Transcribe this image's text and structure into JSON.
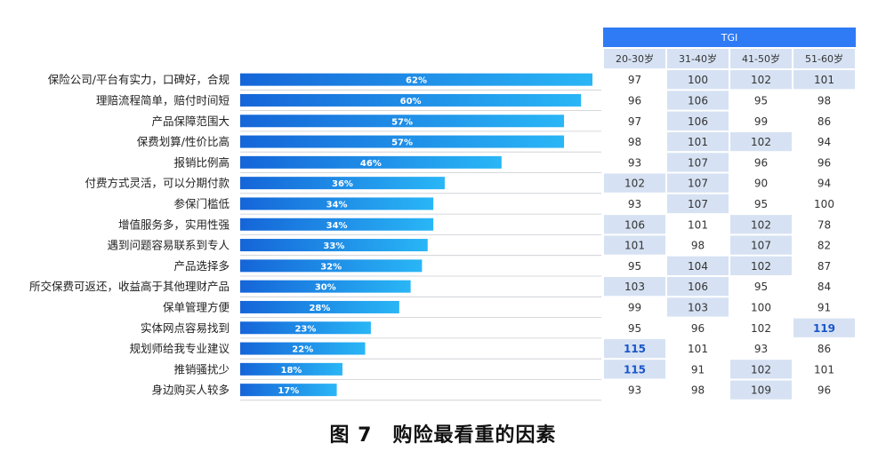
{
  "chart_data": {
    "type": "bar",
    "orientation": "horizontal",
    "categories": [
      "保险公司/平台有实力，口碑好，合规",
      "理赔流程简单，赔付时间短",
      "产品保障范围大",
      "保费划算/性价比高",
      "报销比例高",
      "付费方式灵活，可以分期付款",
      "参保门槛低",
      "增值服务多，实用性强",
      "遇到问题容易联系到专人",
      "产品选择多",
      "所交保费可返还，收益高于其他理财产品",
      "保单管理方便",
      "实体网点容易找到",
      "规划师给我专业建议",
      "推销骚扰少",
      "身边购买人较多"
    ],
    "values": [
      62,
      60,
      57,
      57,
      46,
      36,
      34,
      34,
      33,
      32,
      30,
      28,
      23,
      22,
      18,
      17
    ],
    "value_labels": [
      "62%",
      "60%",
      "57%",
      "57%",
      "46%",
      "36%",
      "34%",
      "34%",
      "33%",
      "32%",
      "30%",
      "28%",
      "23%",
      "22%",
      "18%",
      "17%"
    ],
    "bar_color_start": "#1565d8",
    "bar_color_end": "#29b6f6",
    "tgi_table": {
      "title": "TGI",
      "header_color": "#2f7bf5",
      "subheader_color": "#d6e2f3",
      "highlight_color": "#1a56c9",
      "columns": [
        "20-30岁",
        "31-40岁",
        "41-50岁",
        "51-60岁"
      ],
      "rows": [
        [
          97,
          100,
          102,
          101
        ],
        [
          96,
          106,
          95,
          98
        ],
        [
          97,
          106,
          99,
          86
        ],
        [
          98,
          101,
          102,
          94
        ],
        [
          93,
          107,
          96,
          96
        ],
        [
          102,
          107,
          90,
          94
        ],
        [
          93,
          107,
          95,
          100
        ],
        [
          106,
          101,
          102,
          78
        ],
        [
          101,
          98,
          107,
          82
        ],
        [
          95,
          104,
          102,
          87
        ],
        [
          103,
          106,
          95,
          84
        ],
        [
          99,
          103,
          100,
          91
        ],
        [
          95,
          96,
          102,
          119
        ],
        [
          115,
          101,
          93,
          86
        ],
        [
          115,
          91,
          102,
          101
        ],
        [
          93,
          98,
          109,
          96
        ]
      ],
      "shaded": [
        [
          false,
          true,
          true,
          true
        ],
        [
          false,
          true,
          false,
          false
        ],
        [
          false,
          true,
          false,
          false
        ],
        [
          false,
          true,
          true,
          false
        ],
        [
          false,
          true,
          false,
          false
        ],
        [
          true,
          true,
          false,
          false
        ],
        [
          false,
          true,
          false,
          false
        ],
        [
          true,
          false,
          true,
          false
        ],
        [
          true,
          false,
          true,
          false
        ],
        [
          false,
          true,
          true,
          false
        ],
        [
          true,
          true,
          false,
          false
        ],
        [
          false,
          true,
          false,
          false
        ],
        [
          false,
          false,
          false,
          true
        ],
        [
          true,
          false,
          false,
          false
        ],
        [
          true,
          false,
          true,
          false
        ],
        [
          false,
          false,
          true,
          false
        ]
      ],
      "emphasized": [
        [
          false,
          false,
          false,
          false
        ],
        [
          false,
          false,
          false,
          false
        ],
        [
          false,
          false,
          false,
          false
        ],
        [
          false,
          false,
          false,
          false
        ],
        [
          false,
          false,
          false,
          false
        ],
        [
          false,
          false,
          false,
          false
        ],
        [
          false,
          false,
          false,
          false
        ],
        [
          false,
          false,
          false,
          false
        ],
        [
          false,
          false,
          false,
          false
        ],
        [
          false,
          false,
          false,
          false
        ],
        [
          false,
          false,
          false,
          false
        ],
        [
          false,
          false,
          false,
          false
        ],
        [
          false,
          false,
          false,
          true
        ],
        [
          true,
          false,
          false,
          false
        ],
        [
          true,
          false,
          false,
          false
        ],
        [
          false,
          false,
          false,
          false
        ]
      ]
    }
  },
  "caption": "图 7　购险最看重的因素"
}
